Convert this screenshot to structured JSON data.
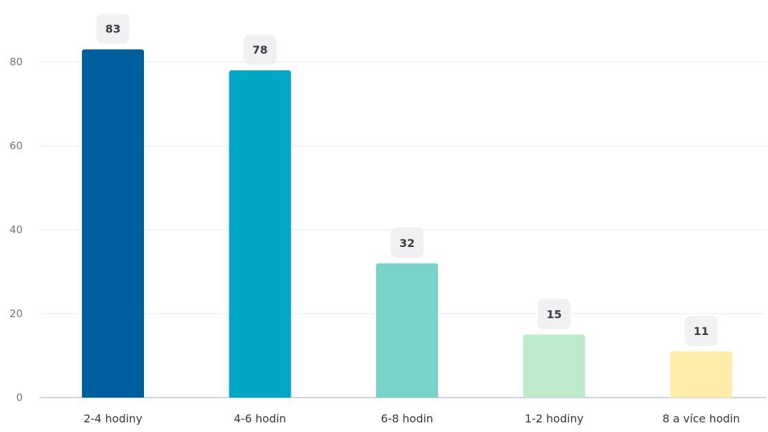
{
  "chart_data": {
    "type": "bar",
    "categories": [
      "2-4 hodiny",
      "4-6 hodin",
      "6-8 hodin",
      "1-2 hodiny",
      "8 a více hodin"
    ],
    "values": [
      83,
      78,
      32,
      15,
      11
    ],
    "colors": [
      "#005f9e",
      "#00a8c6",
      "#79d3c9",
      "#bdebc9",
      "#feeda9"
    ],
    "title": "",
    "xlabel": "",
    "ylabel": "",
    "ylim": [
      0,
      90
    ],
    "yticks": [
      0,
      20,
      40,
      60,
      80
    ],
    "grid": true,
    "data_labels": true,
    "legend": "none"
  }
}
